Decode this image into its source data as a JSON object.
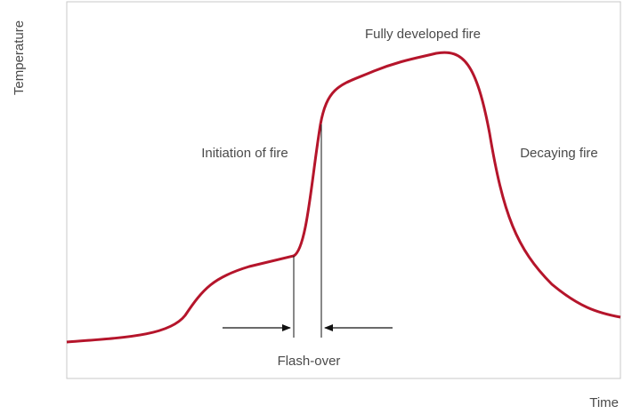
{
  "axes": {
    "y_label": "Temperature",
    "x_label": "Time"
  },
  "labels": {
    "fully_developed": "Fully developed fire",
    "initiation": "Initiation of fire",
    "decaying": "Decaying fire",
    "flash_over": "Flash-over"
  }
}
